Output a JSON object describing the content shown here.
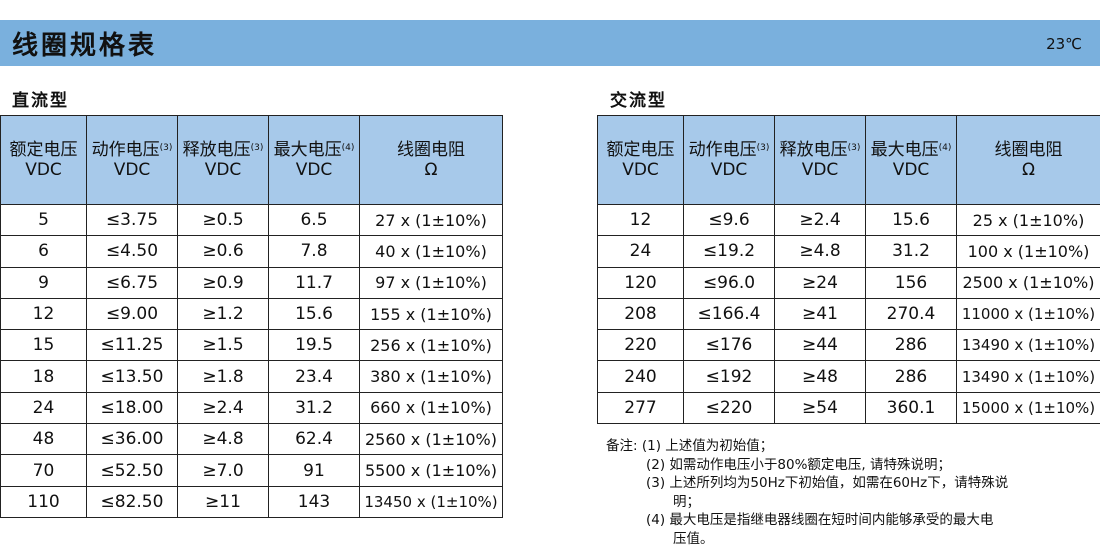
{
  "header": {
    "title": "线圈规格表",
    "temperature": "23℃"
  },
  "columns": {
    "rated": "额定电压",
    "operate": "动作电压",
    "operate_ref": "(3)",
    "release": "释放电压",
    "release_ref": "(3)",
    "max": "最大电压",
    "max_ref": "(4)",
    "resistance": "线圈电阻",
    "ohm": "Ω"
  },
  "dc": {
    "label": "直流型",
    "unit": "VDC",
    "rows": [
      [
        "5",
        "≤3.75",
        "≥0.5",
        "6.5",
        "27 x (1±10%)"
      ],
      [
        "6",
        "≤4.50",
        "≥0.6",
        "7.8",
        "40 x (1±10%)"
      ],
      [
        "9",
        "≤6.75",
        "≥0.9",
        "11.7",
        "97 x (1±10%)"
      ],
      [
        "12",
        "≤9.00",
        "≥1.2",
        "15.6",
        "155 x (1±10%)"
      ],
      [
        "15",
        "≤11.25",
        "≥1.5",
        "19.5",
        "256 x (1±10%)"
      ],
      [
        "18",
        "≤13.50",
        "≥1.8",
        "23.4",
        "380 x (1±10%)"
      ],
      [
        "24",
        "≤18.00",
        "≥2.4",
        "31.2",
        "660 x (1±10%)"
      ],
      [
        "48",
        "≤36.00",
        "≥4.8",
        "62.4",
        "2560 x (1±10%)"
      ],
      [
        "70",
        "≤52.50",
        "≥7.0",
        "91",
        "5500 x (1±10%)"
      ],
      [
        "110",
        "≤82.50",
        "≥11",
        "143",
        "13450 x (1±10%)"
      ]
    ]
  },
  "ac": {
    "label": "交流型",
    "unit": "VDC",
    "rows": [
      [
        "12",
        "≤9.6",
        "≥2.4",
        "15.6",
        "25 x (1±10%)"
      ],
      [
        "24",
        "≤19.2",
        "≥4.8",
        "31.2",
        "100 x (1±10%)"
      ],
      [
        "120",
        "≤96.0",
        "≥24",
        "156",
        "2500 x (1±10%)"
      ],
      [
        "208",
        "≤166.4",
        "≥41",
        "270.4",
        "11000 x (1±10%)"
      ],
      [
        "220",
        "≤176",
        "≥44",
        "286",
        "13490 x (1±10%)"
      ],
      [
        "240",
        "≤192",
        "≥48",
        "286",
        "13490 x (1±10%)"
      ],
      [
        "277",
        "≤220",
        "≥54",
        "360.1",
        "15000 x (1±10%)"
      ]
    ]
  },
  "notes": {
    "prefix": "备注:",
    "n1": "(1) 上述值为初始值；",
    "n2": "(2) 如需动作电压小于80%额定电压, 请特殊说明；",
    "n3a": "(3) 上述所列均为50Hz下初始值，如需在60Hz下，请特殊说",
    "n3b": "明；",
    "n4a": "(4) 最大电压是指继电器线圈在短时间内能够承受的最大电",
    "n4b": "压值。"
  }
}
